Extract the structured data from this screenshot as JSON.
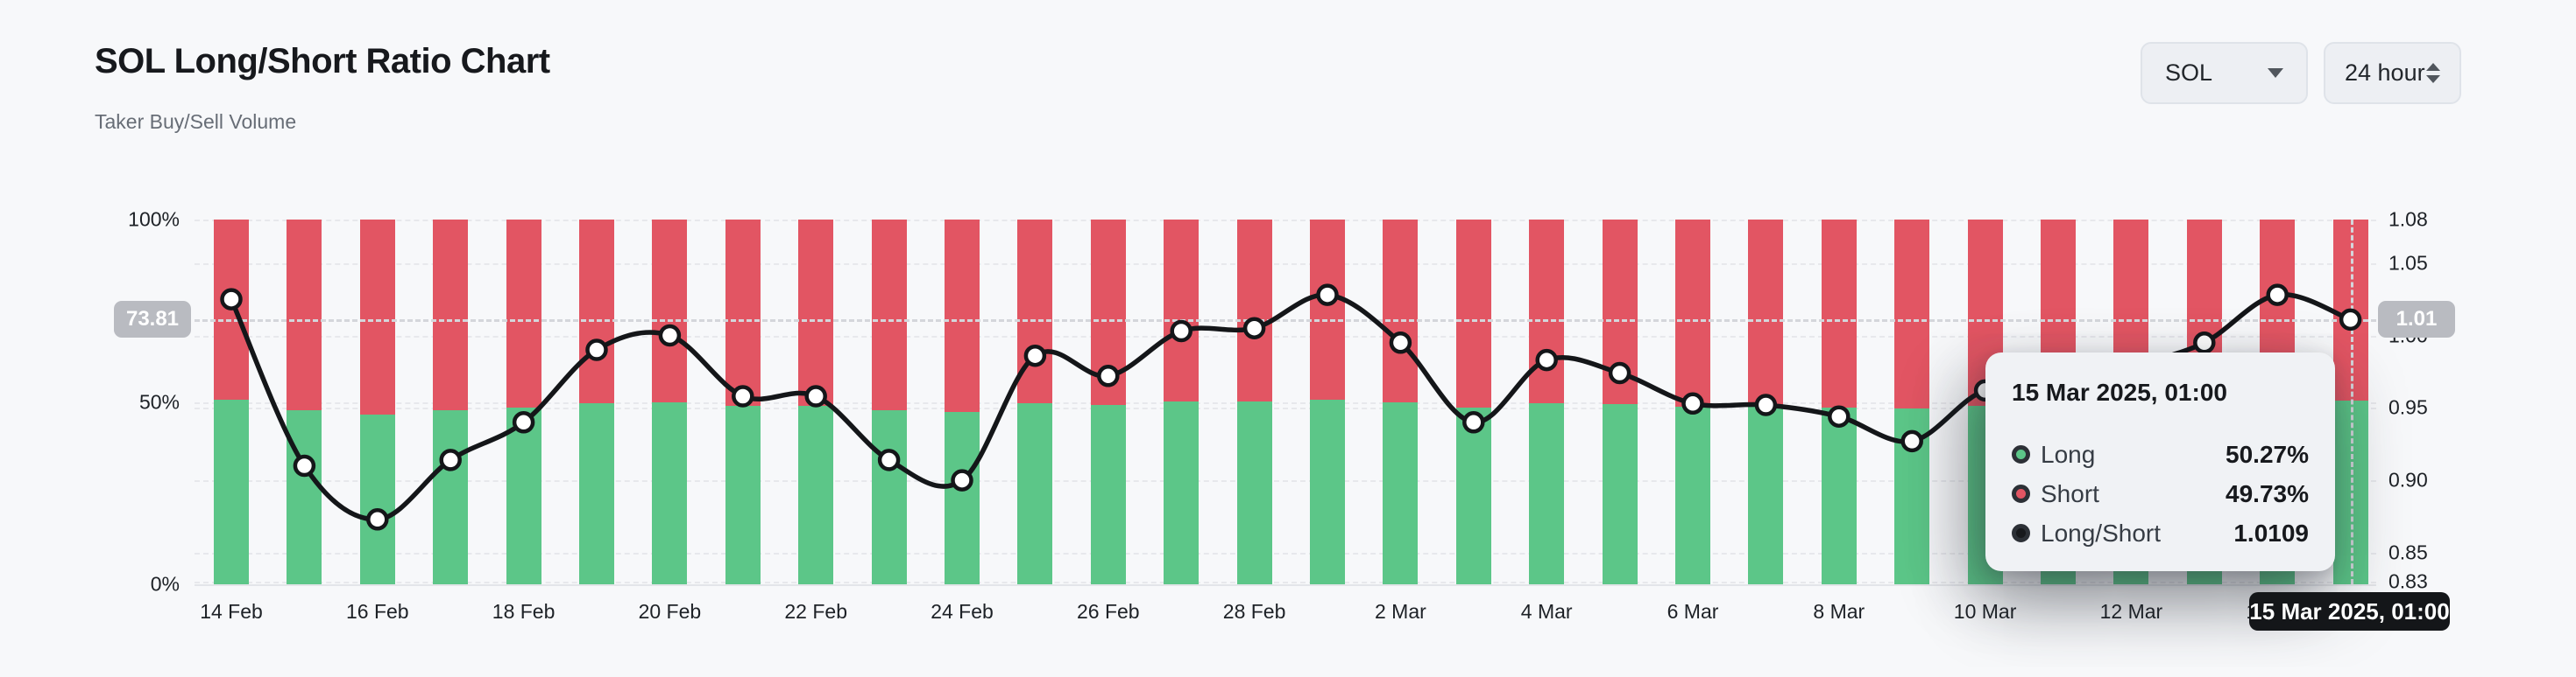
{
  "header": {
    "title": "SOL Long/Short Ratio Chart",
    "subtitle": "Taker Buy/Sell Volume"
  },
  "controls": {
    "symbol": "SOL",
    "interval": "24 hour"
  },
  "colors": {
    "long": "#5cc688",
    "short": "#e25563",
    "ratio_line": "#141619",
    "marker_fill": "#ffffff",
    "badge": "#b9bbc1",
    "crosshair_pill_bg": "#141619"
  },
  "chart_data": {
    "type": "bar",
    "subtype": "stacked-percent bars with overlaid line (long/short ratio)",
    "categories": [
      "14 Feb",
      "15 Feb",
      "16 Feb",
      "17 Feb",
      "18 Feb",
      "19 Feb",
      "20 Feb",
      "21 Feb",
      "22 Feb",
      "23 Feb",
      "24 Feb",
      "25 Feb",
      "26 Feb",
      "27 Feb",
      "28 Feb",
      "1 Mar",
      "2 Mar",
      "3 Mar",
      "4 Mar",
      "5 Mar",
      "6 Mar",
      "7 Mar",
      "8 Mar",
      "9 Mar",
      "10 Mar",
      "11 Mar",
      "12 Mar",
      "13 Mar",
      "14 Mar",
      "15 Mar"
    ],
    "x_tick_labels": [
      "14 Feb",
      "16 Feb",
      "18 Feb",
      "20 Feb",
      "22 Feb",
      "24 Feb",
      "26 Feb",
      "28 Feb",
      "2 Mar",
      "4 Mar",
      "6 Mar",
      "8 Mar",
      "10 Mar",
      "12 Mar",
      "14 Mar"
    ],
    "series": [
      {
        "name": "Long",
        "unit": "%",
        "axis": "left",
        "values": [
          50.62,
          47.64,
          46.61,
          47.75,
          48.45,
          49.75,
          50.0,
          48.93,
          48.93,
          47.75,
          47.37,
          49.65,
          49.29,
          50.07,
          50.12,
          50.69,
          49.87,
          48.45,
          49.57,
          49.34,
          48.8,
          48.77,
          48.56,
          48.11,
          49.03,
          48.93,
          49.44,
          49.87,
          50.69,
          50.27
        ]
      },
      {
        "name": "Short",
        "unit": "%",
        "axis": "left",
        "note": "100 minus Long",
        "values": [
          49.38,
          52.36,
          53.39,
          52.25,
          51.55,
          50.25,
          50.0,
          51.07,
          51.07,
          52.25,
          52.63,
          50.35,
          50.71,
          49.93,
          49.88,
          49.31,
          50.13,
          51.55,
          50.43,
          50.66,
          51.2,
          51.23,
          51.44,
          51.89,
          50.97,
          51.07,
          50.56,
          50.13,
          49.31,
          49.73
        ]
      },
      {
        "name": "Long/Short",
        "type": "line",
        "axis": "right",
        "values": [
          1.025,
          0.91,
          0.873,
          0.914,
          0.94,
          0.99,
          1.0,
          0.958,
          0.958,
          0.914,
          0.9,
          0.986,
          0.972,
          1.003,
          1.005,
          1.028,
          0.995,
          0.94,
          0.983,
          0.974,
          0.953,
          0.952,
          0.944,
          0.927,
          0.962,
          0.958,
          0.978,
          0.995,
          1.028,
          1.0109
        ]
      }
    ],
    "left_axis": {
      "tick_labels": [
        "100%",
        "50%",
        "0%"
      ],
      "range": [
        0,
        100
      ],
      "grid": true
    },
    "right_axis": {
      "tick_labels": [
        "1.08",
        "1.05",
        "1.00",
        "0.95",
        "0.90",
        "0.85",
        "0.83"
      ],
      "tick_values": [
        1.08,
        1.05,
        1.0,
        0.95,
        0.9,
        0.85,
        0.83
      ],
      "range": [
        0.83,
        1.08
      ],
      "grid": true
    },
    "crosshair": {
      "index": 29,
      "ratio": 1.0109,
      "left_badge": "73.81",
      "right_badge": "1.01",
      "x_label": "15 Mar 2025, 01:00"
    },
    "legend_position": "none",
    "title": "SOL Long/Short Ratio Chart"
  },
  "tooltip": {
    "title": "15 Mar 2025, 01:00",
    "rows": [
      {
        "label": "Long",
        "value": "50.27%",
        "color": "#5cc688"
      },
      {
        "label": "Short",
        "value": "49.73%",
        "color": "#e25563"
      },
      {
        "label": "Long/Short",
        "value": "1.0109",
        "color": "#17191c"
      }
    ]
  }
}
